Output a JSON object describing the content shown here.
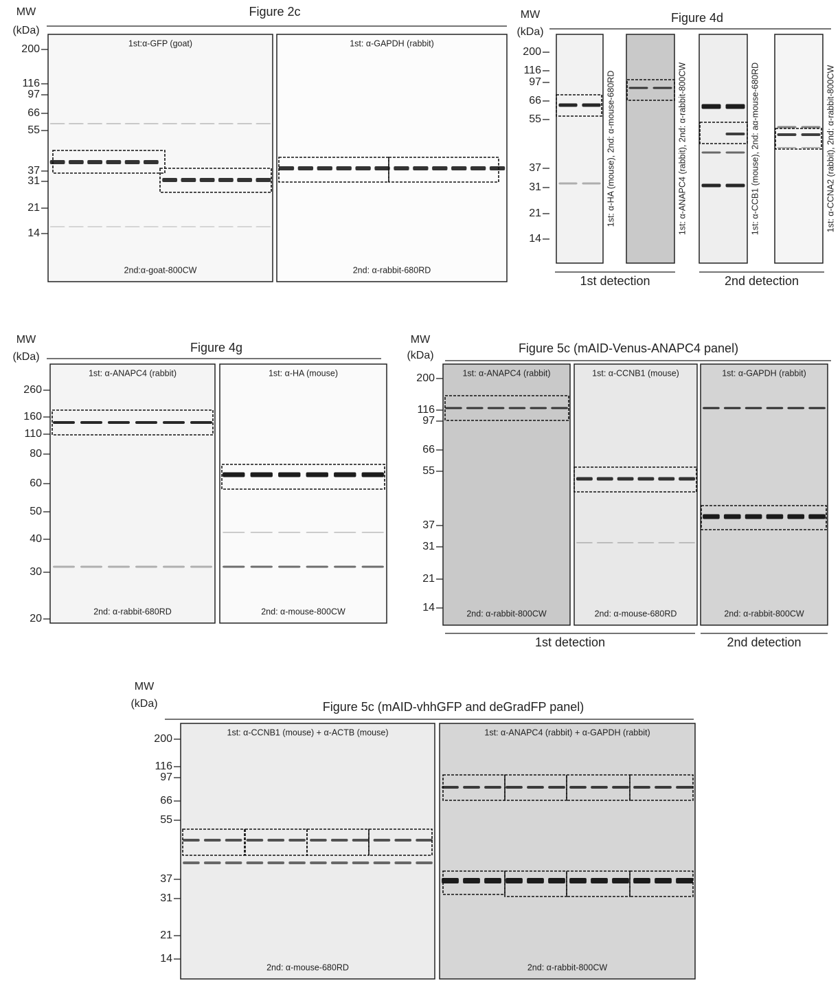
{
  "figures": [
    {
      "title": "Figure 2c",
      "mw": "MW",
      "unit": "(kDa)",
      "markers": [
        "200",
        "116",
        "97",
        "66",
        "55",
        "37",
        "31",
        "21",
        "14"
      ],
      "panels": [
        {
          "top": "1st:α-GFP (goat)",
          "bottom": "2nd:α-goat-800CW"
        },
        {
          "top": "1st: α-GAPDH (rabbit)",
          "bottom": "2nd: α-rabbit-680RD"
        }
      ]
    },
    {
      "title": "Figure 4d",
      "mw": "MW",
      "unit": "(kDa)",
      "markers": [
        "200",
        "116",
        "97",
        "66",
        "55",
        "37",
        "31",
        "21",
        "14"
      ],
      "panels": [
        {
          "label": "1st: α-HA (mouse),  2nd: α-mouse-680RD"
        },
        {
          "label": "1st: α-ANAPC4 (rabbit),  2nd: α-rabbit-800CW"
        },
        {
          "label": "1st: α-CCB1 (mouse),  2nd: aα-mouse-680RD"
        },
        {
          "label": "1st: α-CCNA2 (rabbit),  2nd: α-rabbit-800CW"
        }
      ],
      "groups": [
        "1st detection",
        "2nd detection"
      ]
    },
    {
      "title": "Figure 4g",
      "mw": "MW",
      "unit": "(kDa)",
      "markers": [
        "260",
        "160",
        "110",
        "80",
        "60",
        "50",
        "40",
        "30",
        "20"
      ],
      "panels": [
        {
          "top": "1st: α-ANAPC4 (rabbit)",
          "bottom": "2nd: α-rabbit-680RD"
        },
        {
          "top": "1st: α-HA (mouse)",
          "bottom": "2nd: α-mouse-800CW"
        }
      ]
    },
    {
      "title": "Figure 5c (mAID-Venus-ANAPC4 panel)",
      "mw": "MW",
      "unit": "(kDa)",
      "markers": [
        "200",
        "116",
        "97",
        "66",
        "55",
        "37",
        "31",
        "21",
        "14"
      ],
      "panels": [
        {
          "top": "1st: α-ANAPC4 (rabbit)",
          "bottom": "2nd: α-rabbit-800CW"
        },
        {
          "top": "1st: α-CCNB1 (mouse)",
          "bottom": "2nd: α-mouse-680RD"
        },
        {
          "top": "1st: α-GAPDH (rabbit)",
          "bottom": "2nd: α-rabbit-800CW"
        }
      ],
      "groups": [
        "1st detection",
        "2nd detection"
      ]
    },
    {
      "title": "Figure 5c (mAID-vhhGFP and deGradFP panel)",
      "mw": "MW",
      "unit": "(kDa)",
      "markers": [
        "200",
        "116",
        "97",
        "66",
        "55",
        "37",
        "31",
        "21",
        "14"
      ],
      "panels": [
        {
          "top": "1st: α-CCNB1 (mouse) + α-ACTB (mouse)",
          "bottom": "2nd: α-mouse-680RD"
        },
        {
          "top": "1st: α-ANAPC4 (rabbit) + α-GAPDH (rabbit)",
          "bottom": "2nd: α-rabbit-800CW"
        }
      ]
    }
  ]
}
